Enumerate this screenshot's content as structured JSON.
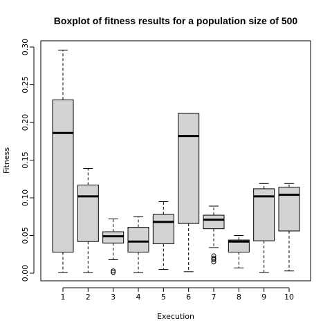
{
  "chart_data": {
    "type": "boxplot",
    "title": "Boxplot of fitness results for a population size of 500",
    "xlabel": "Execution",
    "ylabel": "Fitness",
    "ylim": [
      -0.01,
      0.31
    ],
    "yticks": [
      0.0,
      0.05,
      0.1,
      0.15,
      0.2,
      0.25,
      0.3
    ],
    "ytick_labels": [
      "0.00",
      "0.05",
      "0.10",
      "0.15",
      "0.20",
      "0.25",
      "0.30"
    ],
    "categories": [
      "1",
      "2",
      "3",
      "4",
      "5",
      "6",
      "7",
      "8",
      "9",
      "10"
    ],
    "grid": false,
    "box_fill": "#d3d3d3",
    "boxes": [
      {
        "label": "1",
        "whisker_low": 0.001,
        "q1": 0.028,
        "median": 0.186,
        "q3": 0.23,
        "whisker_high": 0.296,
        "outliers": []
      },
      {
        "label": "2",
        "whisker_low": 0.001,
        "q1": 0.042,
        "median": 0.102,
        "q3": 0.117,
        "whisker_high": 0.139,
        "outliers": []
      },
      {
        "label": "3",
        "whisker_low": 0.018,
        "q1": 0.04,
        "median": 0.049,
        "q3": 0.055,
        "whisker_high": 0.072,
        "outliers": [
          0.003,
          0.001
        ]
      },
      {
        "label": "4",
        "whisker_low": 0.001,
        "q1": 0.028,
        "median": 0.042,
        "q3": 0.061,
        "whisker_high": 0.075,
        "outliers": []
      },
      {
        "label": "5",
        "whisker_low": 0.005,
        "q1": 0.039,
        "median": 0.068,
        "q3": 0.078,
        "whisker_high": 0.095,
        "outliers": []
      },
      {
        "label": "6",
        "whisker_low": 0.002,
        "q1": 0.066,
        "median": 0.182,
        "q3": 0.212,
        "whisker_high": 0.212,
        "outliers": []
      },
      {
        "label": "7",
        "whisker_low": 0.034,
        "q1": 0.059,
        "median": 0.071,
        "q3": 0.077,
        "whisker_high": 0.089,
        "outliers": [
          0.023,
          0.02,
          0.018,
          0.015
        ]
      },
      {
        "label": "8",
        "whisker_low": 0.007,
        "q1": 0.028,
        "median": 0.042,
        "q3": 0.044,
        "whisker_high": 0.05,
        "outliers": []
      },
      {
        "label": "9",
        "whisker_low": 0.001,
        "q1": 0.043,
        "median": 0.102,
        "q3": 0.112,
        "whisker_high": 0.119,
        "outliers": []
      },
      {
        "label": "10",
        "whisker_low": 0.003,
        "q1": 0.056,
        "median": 0.104,
        "q3": 0.114,
        "whisker_high": 0.119,
        "outliers": []
      }
    ]
  }
}
